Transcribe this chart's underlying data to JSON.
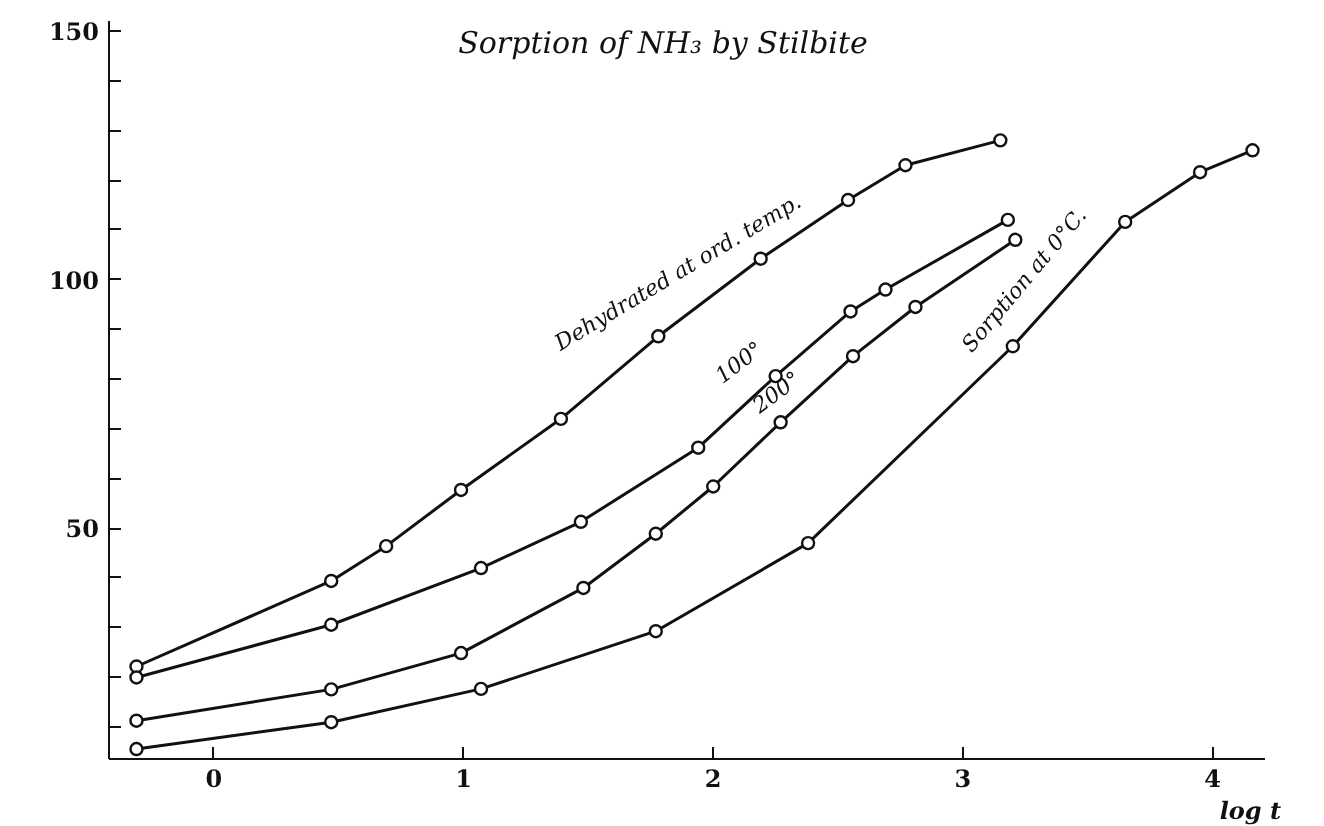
{
  "chart_data": {
    "type": "line",
    "title": "Sorption of NH₃ by Stilbite",
    "xlabel": "log t",
    "xlim": [
      -0.42,
      4.21
    ],
    "ylim": [
      3.6,
      152
    ],
    "xticks": [
      0,
      1,
      2,
      3,
      4
    ],
    "yticks": [
      {
        "value": 10,
        "label": null
      },
      {
        "value": 20,
        "label": null
      },
      {
        "value": 30,
        "label": null
      },
      {
        "value": 40,
        "label": null
      },
      50,
      {
        "value": 60,
        "label": null
      },
      {
        "value": 70,
        "label": null
      },
      {
        "value": 80,
        "label": null
      },
      {
        "value": 90,
        "label": null
      },
      100,
      {
        "value": 110,
        "label": null
      },
      {
        "value": 120,
        "label": null
      },
      {
        "value": 130,
        "label": null
      },
      {
        "value": 140,
        "label": null
      },
      150
    ],
    "marker": "circle",
    "line_style": "solid",
    "grid": false,
    "series": [
      {
        "color": "#111111",
        "x": [
          -0.31,
          0.47,
          0.69,
          0.99,
          1.39,
          1.78,
          2.19,
          2.54,
          2.77,
          3.15
        ],
        "values": [
          22.2,
          39.4,
          46.4,
          57.7,
          72.0,
          88.6,
          104.2,
          116.0,
          123.0,
          128.0
        ]
      },
      {
        "color": "#111111",
        "x": [
          -0.31,
          0.47,
          1.07,
          1.47,
          1.94,
          2.25,
          2.55,
          2.69,
          3.18
        ],
        "values": [
          20.0,
          30.6,
          42.0,
          51.3,
          66.2,
          80.6,
          93.6,
          98.0,
          112.0
        ]
      },
      {
        "color": "#111111",
        "x": [
          -0.31,
          0.47,
          0.99,
          1.48,
          1.77,
          2.0,
          2.27,
          2.56,
          2.81,
          3.21
        ],
        "values": [
          11.3,
          17.6,
          24.9,
          38.0,
          48.9,
          58.4,
          71.3,
          84.6,
          94.5,
          108.0
        ]
      },
      {
        "color": "#111111",
        "x": [
          -0.31,
          0.47,
          1.07,
          1.77,
          2.38,
          3.2,
          3.65,
          3.95,
          4.16
        ],
        "values": [
          5.6,
          11.0,
          17.7,
          29.3,
          47.0,
          86.6,
          111.6,
          121.6,
          126.0
        ]
      }
    ],
    "annotations": [
      {
        "text": "Dehydrated at ord. temp.",
        "x": 1.95,
        "y": 96
      },
      {
        "text": "100°",
        "x": 2.2,
        "y": 78
      },
      {
        "text": "200°",
        "x": 2.35,
        "y": 72
      },
      {
        "text": "Sorption at 0°C.",
        "x": 3.35,
        "y": 95
      }
    ]
  }
}
